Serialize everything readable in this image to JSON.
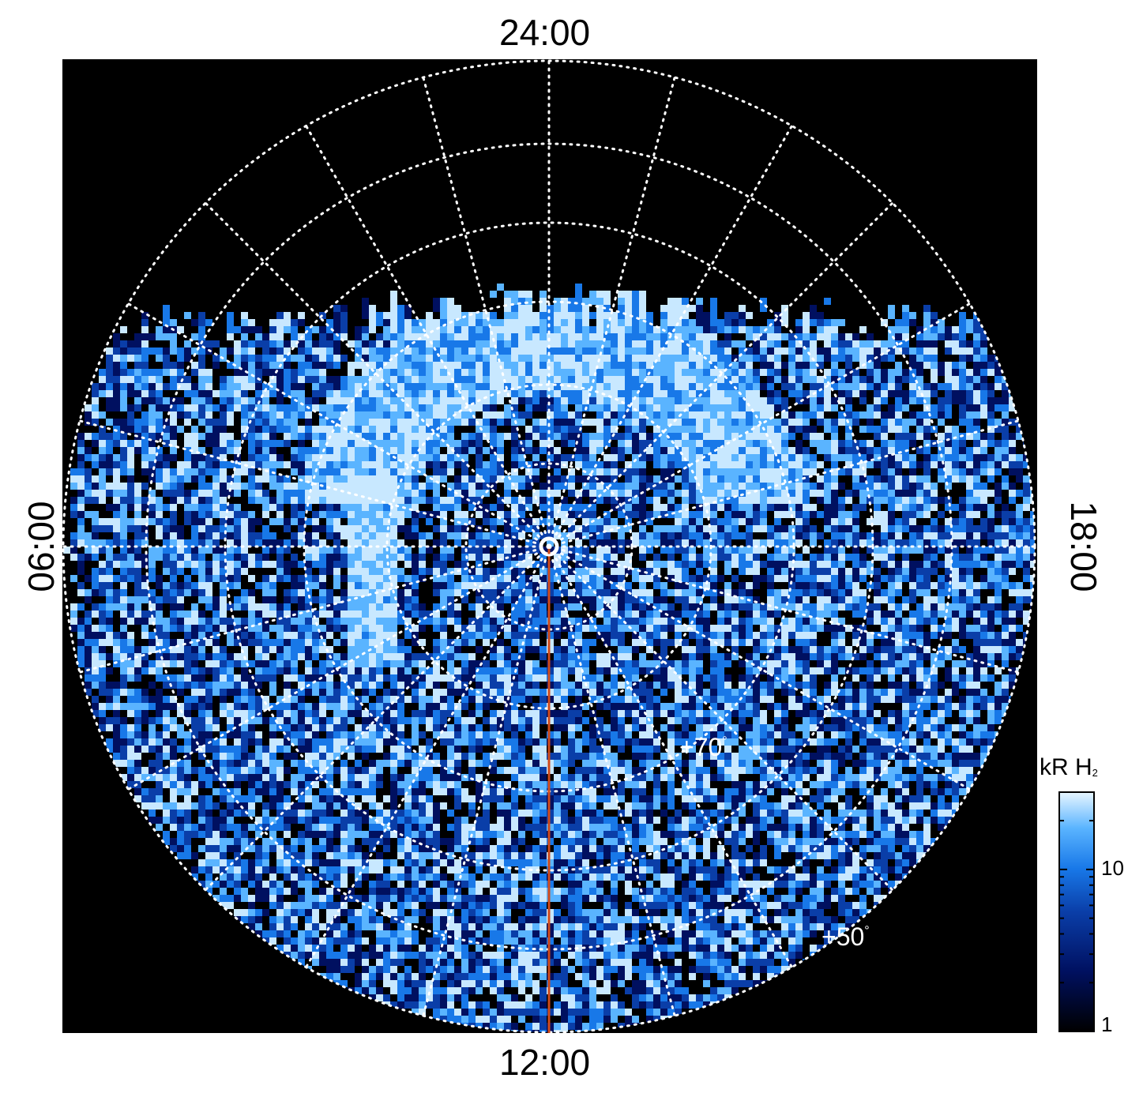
{
  "polar_map": {
    "local_time_labels": {
      "top": "24:00",
      "bottom": "12:00",
      "left": "06:00",
      "right": "18:00"
    },
    "latitude_labels": [
      {
        "text": "+70",
        "unit": "°"
      },
      {
        "text": "+50",
        "unit": "°"
      }
    ],
    "colors": {
      "background": "#000000",
      "grid": "#ffffff",
      "meridian_line": "#d04a1a",
      "palette": [
        "#000000",
        "#001060",
        "#0a3ea8",
        "#1878e8",
        "#5ab4ff",
        "#c8e8ff"
      ]
    }
  },
  "colorbar": {
    "title": "kR H",
    "title_subscript": "2",
    "scale": "log",
    "range": [
      1,
      30
    ],
    "ticks": [
      "10",
      "1"
    ]
  }
}
